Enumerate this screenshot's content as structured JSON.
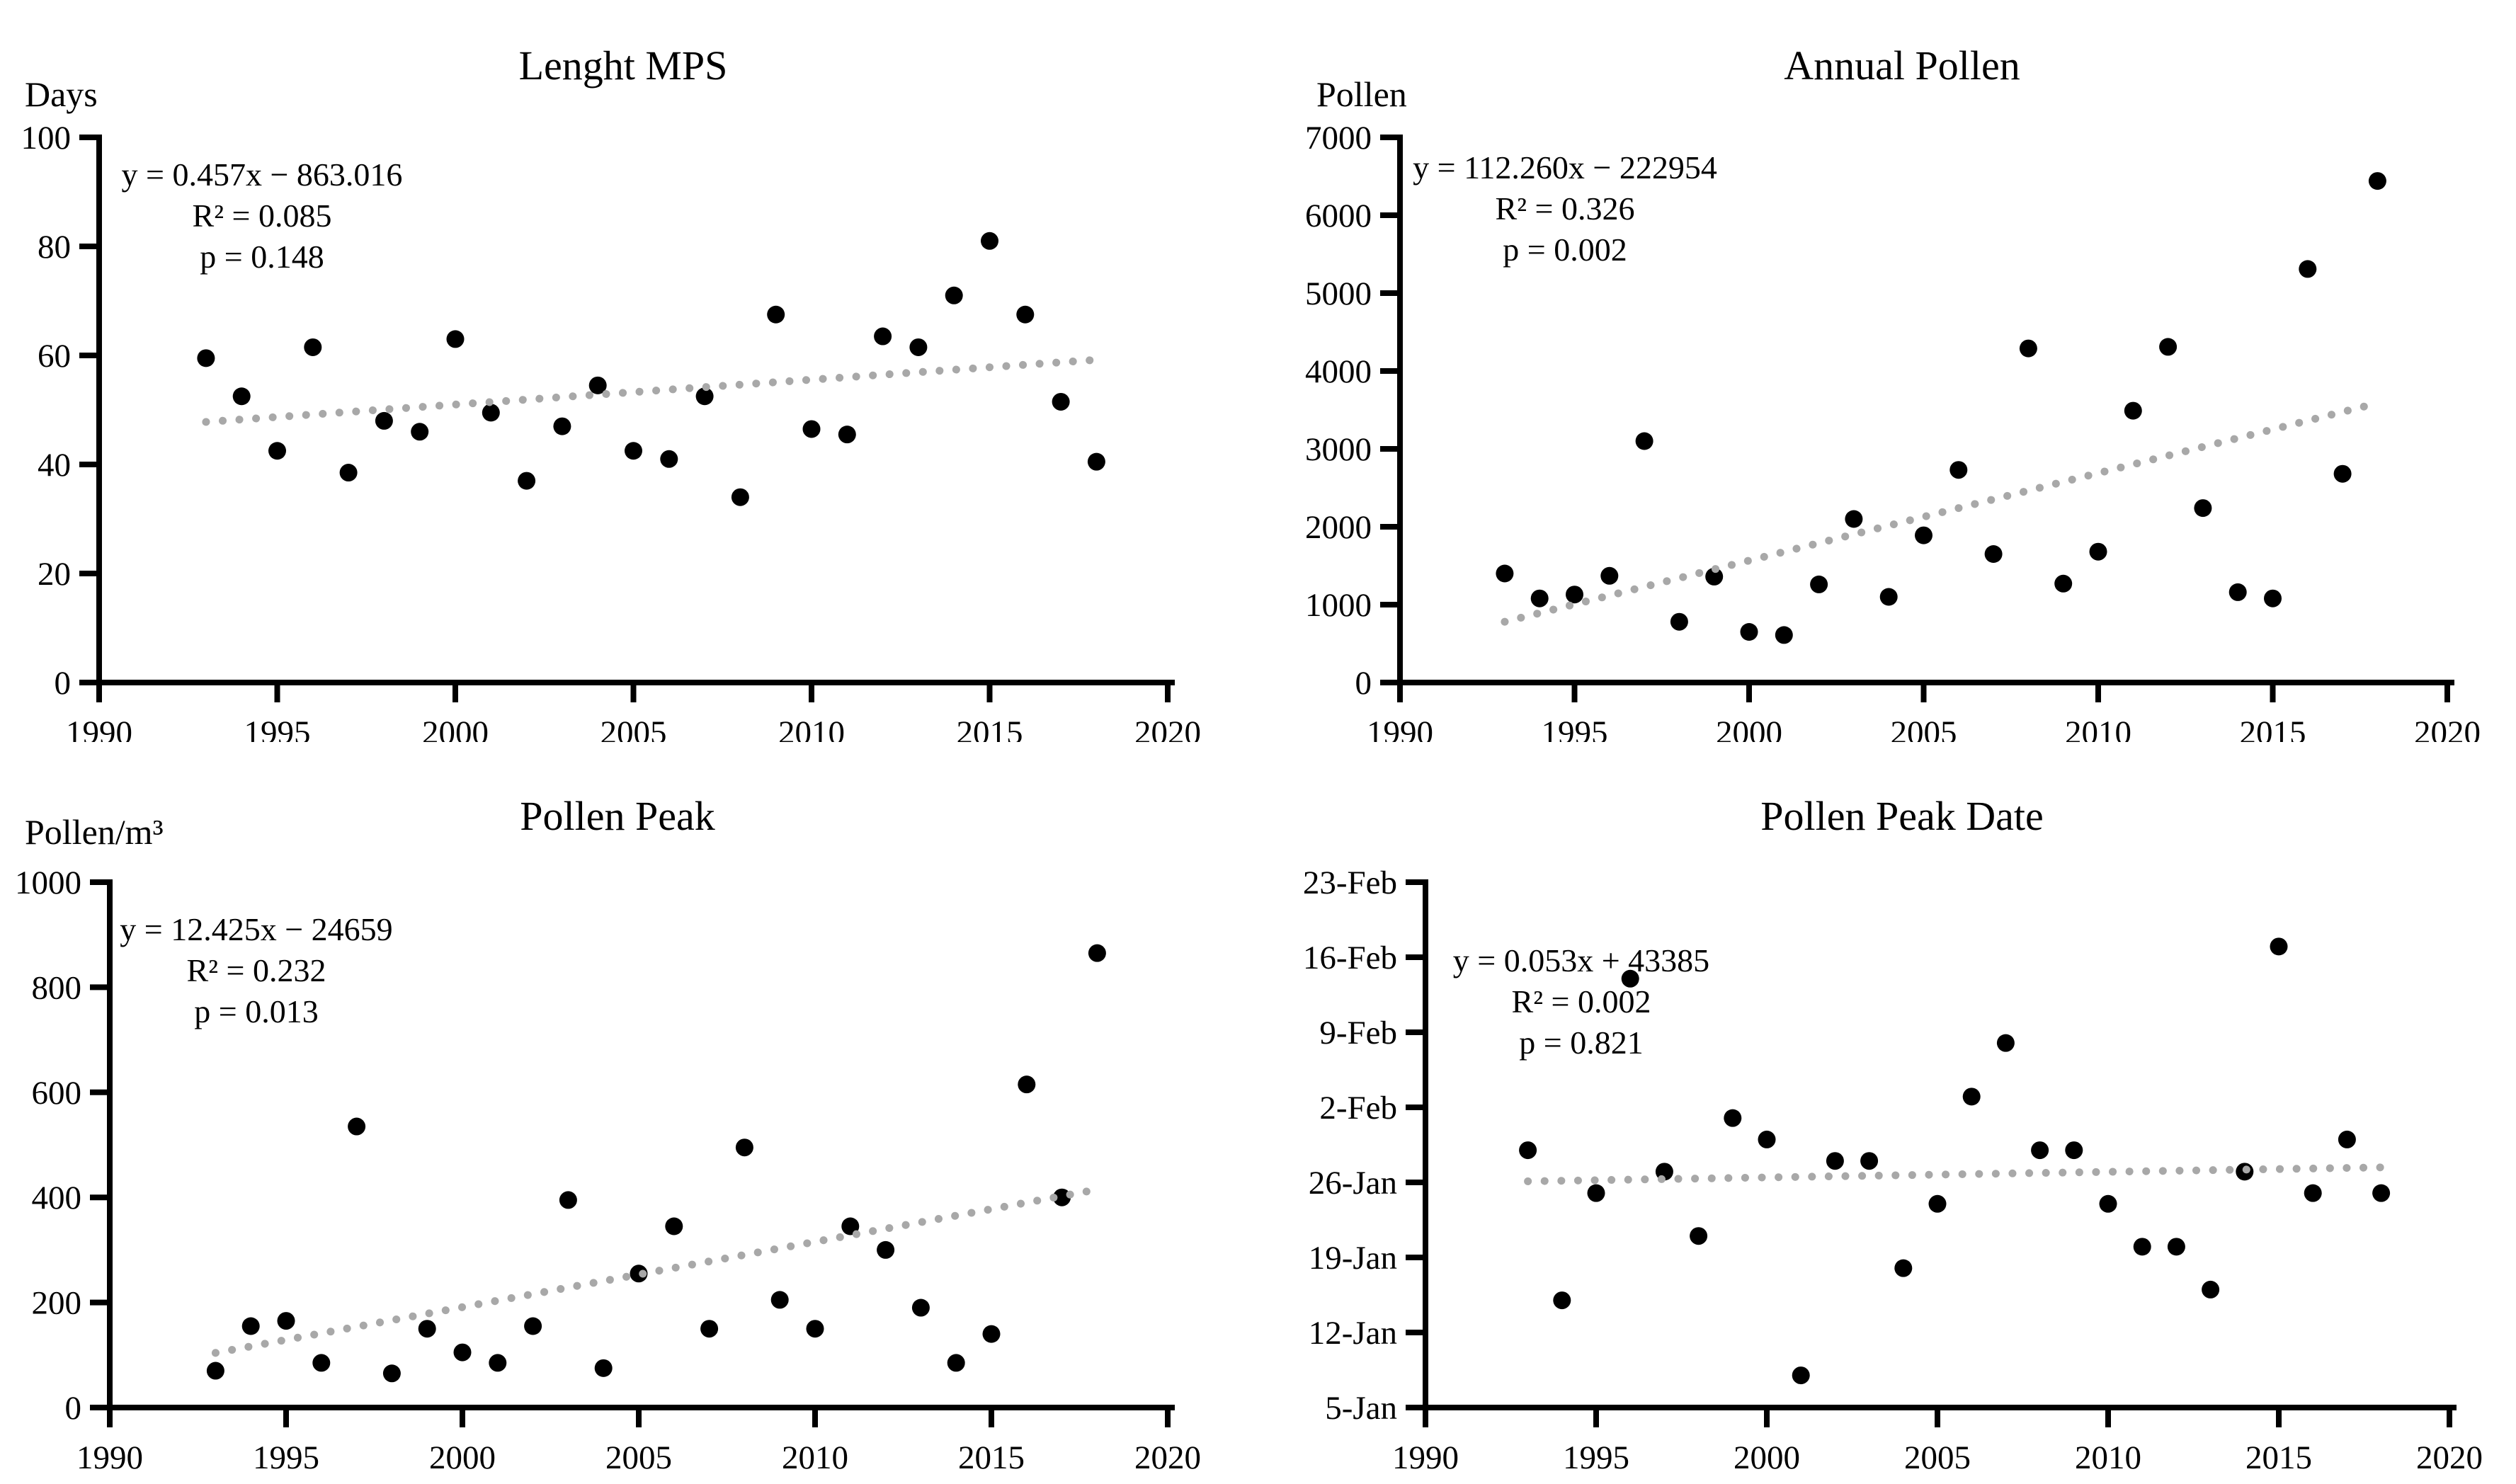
{
  "figure": {
    "background_color": "#ffffff",
    "point_color": "#000000",
    "trend_color": "#a8a8a8",
    "axis_color": "#000000"
  },
  "chart_data": [
    {
      "id": "length-mps",
      "type": "scatter",
      "title": "Lenght MPS",
      "ylabel": "Days",
      "xlabel": "",
      "xlim": [
        1990,
        2020
      ],
      "ylim": [
        0,
        100
      ],
      "x_tick_values": [
        1990,
        1995,
        2000,
        2005,
        2010,
        2015,
        2020
      ],
      "x_tick_labels": [
        "1990",
        "1995",
        "2000",
        "2005",
        "2010",
        "2015",
        "2020"
      ],
      "y_tick_values": [
        0,
        20,
        40,
        60,
        80,
        100
      ],
      "y_tick_labels": [
        "0",
        "20",
        "40",
        "60",
        "80",
        "100"
      ],
      "equation": "y = 0.457x − 863.016",
      "r_squared": "R² = 0.085",
      "p_value": "p = 0.148",
      "legend_position": "none",
      "grid": false,
      "x": [
        1993,
        1994,
        1995,
        1996,
        1997,
        1998,
        1999,
        2000,
        2001,
        2002,
        2003,
        2004,
        2005,
        2006,
        2007,
        2008,
        2009,
        2010,
        2011,
        2012,
        2013,
        2014,
        2015,
        2016,
        2017,
        2018
      ],
      "y": [
        59.5,
        52.5,
        42.5,
        61.5,
        38.5,
        48,
        46,
        63,
        49.5,
        37,
        47,
        54.5,
        42.5,
        41,
        52.5,
        34,
        67.5,
        46.5,
        45.5,
        63.5,
        61.5,
        71,
        81,
        67.5,
        51.5,
        40.5
      ],
      "trendline": {
        "x": [
          1993,
          2018
        ],
        "y": [
          47.8,
          59.2
        ]
      }
    },
    {
      "id": "annual-pollen",
      "type": "scatter",
      "title": "Annual Pollen",
      "ylabel": "Pollen",
      "xlabel": "",
      "xlim": [
        1990,
        2020
      ],
      "ylim": [
        0,
        7000
      ],
      "x_tick_values": [
        1990,
        1995,
        2000,
        2005,
        2010,
        2015,
        2020
      ],
      "x_tick_labels": [
        "1990",
        "1995",
        "2000",
        "2005",
        "2010",
        "2015",
        "2020"
      ],
      "y_tick_values": [
        0,
        1000,
        2000,
        3000,
        4000,
        5000,
        6000,
        7000
      ],
      "y_tick_labels": [
        "0",
        "1000",
        "2000",
        "3000",
        "4000",
        "5000",
        "6000",
        "7000"
      ],
      "equation": "y = 112.260x − 222954",
      "r_squared": "R² = 0.326",
      "p_value": "p = 0.002",
      "legend_position": "none",
      "grid": false,
      "x": [
        1993,
        1994,
        1995,
        1996,
        1997,
        1998,
        1999,
        2000,
        2001,
        2002,
        2003,
        2004,
        2005,
        2006,
        2007,
        2008,
        2009,
        2010,
        2011,
        2012,
        2013,
        2014,
        2015,
        2016,
        2017,
        2018
      ],
      "y": [
        1400,
        1080,
        1130,
        1370,
        3100,
        780,
        1360,
        650,
        610,
        1260,
        2100,
        1100,
        1890,
        2730,
        1650,
        4290,
        1270,
        1680,
        3490,
        4310,
        2240,
        1160,
        1080,
        5310,
        2680,
        6440
      ],
      "trendline": {
        "x": [
          1993,
          2018
        ],
        "y": [
          780,
          3587
        ]
      }
    },
    {
      "id": "pollen-peak",
      "type": "scatter",
      "title": "Pollen Peak",
      "ylabel": "Pollen/m³",
      "xlabel": "",
      "xlim": [
        1990,
        2020
      ],
      "ylim": [
        0,
        1000
      ],
      "x_tick_values": [
        1990,
        1995,
        2000,
        2005,
        2010,
        2015,
        2020
      ],
      "x_tick_labels": [
        "1990",
        "1995",
        "2000",
        "2005",
        "2010",
        "2015",
        "2020"
      ],
      "y_tick_values": [
        0,
        200,
        400,
        600,
        800,
        1000
      ],
      "y_tick_labels": [
        "0",
        "200",
        "400",
        "600",
        "800",
        "1000"
      ],
      "equation": "y = 12.425x − 24659",
      "r_squared": "R² = 0.232",
      "p_value": "p = 0.013",
      "legend_position": "none",
      "grid": false,
      "x": [
        1993,
        1994,
        1995,
        1996,
        1997,
        1998,
        1999,
        2000,
        2001,
        2002,
        2003,
        2004,
        2005,
        2006,
        2007,
        2008,
        2009,
        2010,
        2011,
        2012,
        2013,
        2014,
        2015,
        2016,
        2017,
        2018
      ],
      "y": [
        70,
        155,
        165,
        85,
        535,
        65,
        150,
        105,
        85,
        155,
        395,
        75,
        255,
        345,
        150,
        495,
        205,
        150,
        345,
        300,
        190,
        85,
        140,
        615,
        400,
        865
      ],
      "trendline": {
        "x": [
          1993,
          2018
        ],
        "y": [
          104,
          415
        ]
      }
    },
    {
      "id": "pollen-peak-date",
      "type": "scatter",
      "title": "Pollen Peak Date",
      "ylabel": "",
      "xlabel": "",
      "xlim": [
        1990,
        2020
      ],
      "ylim": [
        5,
        54
      ],
      "ylim_note": "y encoded as day number: Jan n = n, Feb n = 31 + n",
      "x_tick_values": [
        1990,
        1995,
        2000,
        2005,
        2010,
        2015,
        2020
      ],
      "x_tick_labels": [
        "1990",
        "1995",
        "2000",
        "2005",
        "2010",
        "2015",
        "2020"
      ],
      "y_tick_values": [
        5,
        12,
        19,
        26,
        33,
        40,
        47,
        54
      ],
      "y_tick_labels": [
        "5-Jan",
        "12-Jan",
        "19-Jan",
        "26-Jan",
        "2-Feb",
        "9-Feb",
        "16-Feb",
        "23-Feb"
      ],
      "equation": "y = 0.053x + 43385",
      "r_squared": "R² = 0.002",
      "p_value": "p = 0.821",
      "legend_position": "none",
      "grid": false,
      "x": [
        1993,
        1994,
        1995,
        1996,
        1997,
        1998,
        1999,
        2000,
        2001,
        2002,
        2003,
        2004,
        2005,
        2006,
        2007,
        2008,
        2009,
        2010,
        2011,
        2012,
        2013,
        2014,
        2015,
        2016,
        2017,
        2018
      ],
      "y": [
        29,
        15,
        25,
        45,
        27,
        21,
        32,
        30,
        8,
        28,
        28,
        18,
        24,
        34,
        39,
        29,
        29,
        24,
        20,
        20,
        16,
        27,
        48,
        25,
        30,
        25
      ],
      "y_dates": [
        "29-Jan",
        "15-Jan",
        "25-Jan",
        "14-Feb",
        "27-Jan",
        "21-Jan",
        "1-Feb",
        "30-Jan",
        "8-Jan",
        "28-Jan",
        "28-Jan",
        "18-Jan",
        "24-Jan",
        "3-Feb",
        "8-Feb",
        "29-Jan",
        "29-Jan",
        "24-Jan",
        "20-Jan",
        "20-Jan",
        "16-Jan",
        "27-Jan",
        "17-Feb",
        "25-Jan",
        "30-Jan",
        "25-Jan"
      ],
      "trendline": {
        "x": [
          1993,
          2018
        ],
        "y": [
          26.1,
          27.4
        ]
      }
    }
  ]
}
